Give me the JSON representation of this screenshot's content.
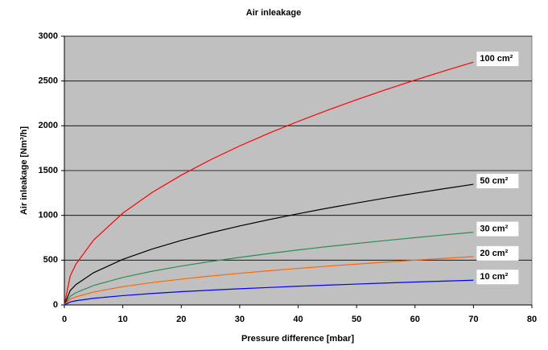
{
  "chart_data": {
    "type": "line",
    "title": "Air inleakage",
    "xlabel": "Pressure difference [mbar]",
    "ylabel": "Air inleakage [Nm³/h]",
    "x": [
      0,
      1,
      2,
      5,
      10,
      15,
      20,
      25,
      30,
      35,
      40,
      45,
      50,
      55,
      60,
      65,
      70
    ],
    "series": [
      {
        "name": "100 cm²",
        "color": "#ff0000",
        "values": [
          0,
          324,
          458,
          724,
          1025,
          1255,
          1449,
          1620,
          1775,
          1917,
          2049,
          2173,
          2291,
          2403,
          2510,
          2612,
          2711
        ]
      },
      {
        "name": "50 cm²",
        "color": "#000000",
        "values": [
          0,
          161,
          228,
          360,
          509,
          624,
          720,
          805,
          882,
          952,
          1018,
          1080,
          1138,
          1194,
          1247,
          1298,
          1347
        ]
      },
      {
        "name": "30 cm²",
        "color": "#2e8b57",
        "values": [
          0,
          97,
          137,
          217,
          307,
          376,
          434,
          485,
          531,
          574,
          614,
          651,
          686,
          719,
          751,
          782,
          812
        ]
      },
      {
        "name": "20 cm²",
        "color": "#ff6600",
        "values": [
          0,
          65,
          91,
          144,
          204,
          250,
          288,
          323,
          353,
          382,
          408,
          433,
          456,
          478,
          500,
          520,
          540
        ]
      },
      {
        "name": "10 cm²",
        "color": "#0000ff",
        "values": [
          0,
          33,
          47,
          74,
          104,
          128,
          148,
          165,
          181,
          195,
          209,
          221,
          233,
          245,
          256,
          266,
          276
        ]
      }
    ],
    "xlim": [
      0,
      80
    ],
    "xticks": [
      0,
      10,
      20,
      30,
      40,
      50,
      60,
      70,
      80
    ],
    "ylim": [
      0,
      3000
    ],
    "yticks": [
      0,
      500,
      1000,
      1500,
      2000,
      2500,
      3000
    ],
    "grid": true,
    "background": "#c0c0c0"
  }
}
